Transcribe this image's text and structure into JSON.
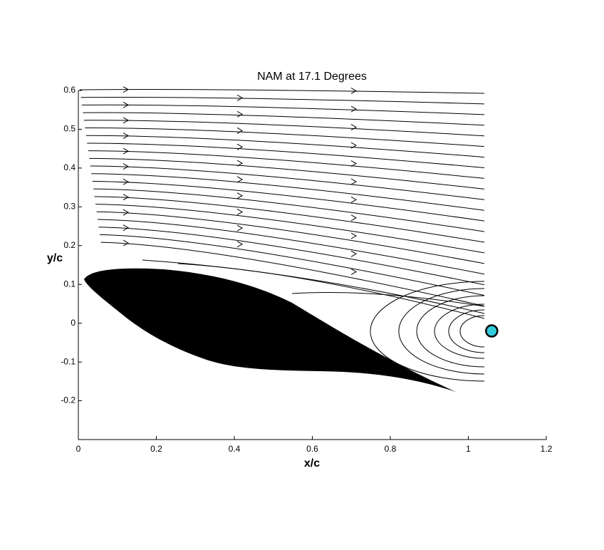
{
  "chart_data": {
    "type": "scatter",
    "title": "NAM at 17.1 Degrees",
    "xlabel": "x/c",
    "ylabel": "y/c",
    "xlim": [
      0,
      1.2
    ],
    "ylim": [
      -0.3,
      0.6
    ],
    "xticks": [
      0,
      0.2,
      0.4,
      0.6,
      0.8,
      1,
      1.2
    ],
    "yticks": [
      -0.2,
      -0.1,
      0,
      0.1,
      0.2,
      0.3,
      0.4,
      0.5,
      0.6
    ],
    "series": [
      {
        "color": "#33ccdd",
        "x": [
          1.06
        ],
        "values": [
          -0.02
        ]
      }
    ]
  }
}
